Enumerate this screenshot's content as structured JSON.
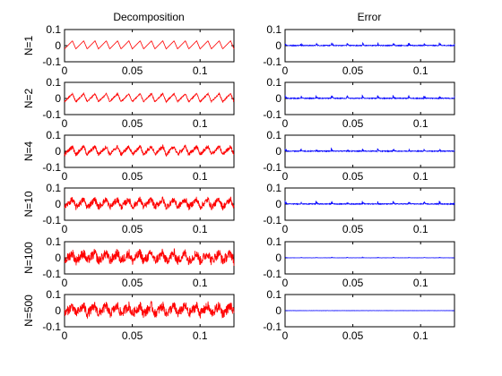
{
  "chart_data": {
    "type": "line",
    "layout": "grid 6 rows x 2 columns",
    "column_titles": [
      "Decomposition",
      "Error"
    ],
    "row_labels": [
      "N=1",
      "N=2",
      "N=4",
      "N=10",
      "N=100",
      "N=500"
    ],
    "xlim": [
      0,
      0.125
    ],
    "ylim": [
      -0.1,
      0.1
    ],
    "x_ticks": [
      0,
      0.05,
      0.1
    ],
    "x_tick_labels": [
      "0",
      "0.05",
      "0.1"
    ],
    "y_ticks": [
      0.1,
      0,
      -0.1
    ],
    "y_tick_labels": [
      "0.1",
      "0",
      "-0.1"
    ],
    "series_colors": {
      "decomposition": "#ff0000",
      "error": "#0000ff"
    },
    "signal": {
      "periods": 15,
      "decomposition_amplitude_peak": 0.03,
      "decomposition_noise_by_row": [
        0.0,
        0.004,
        0.012,
        0.02,
        0.03,
        0.03
      ],
      "error_peak_by_row": [
        0.022,
        0.02,
        0.018,
        0.02,
        0.004,
        0.0
      ],
      "error_baseline": 0.005
    }
  }
}
